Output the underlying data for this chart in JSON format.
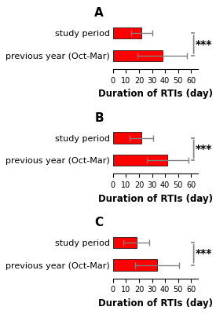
{
  "panels": [
    {
      "label": "A",
      "categories": [
        "study period",
        "previous year (Oct-Mar)"
      ],
      "values": [
        22,
        38
      ],
      "errors": [
        8,
        19
      ],
      "xlim": [
        0,
        65
      ],
      "xticks": [
        0,
        10,
        20,
        30,
        40,
        50,
        60
      ],
      "xlabel": "Duration of RTIs (day)",
      "sig_text": "***"
    },
    {
      "label": "B",
      "categories": [
        "study period",
        "previous year (Oct-Mar)"
      ],
      "values": [
        22,
        42
      ],
      "errors": [
        9,
        16
      ],
      "xlim": [
        0,
        65
      ],
      "xticks": [
        0,
        10,
        20,
        30,
        40,
        50,
        60
      ],
      "xlabel": "Duration of RTIs (day)",
      "sig_text": "***"
    },
    {
      "label": "C",
      "categories": [
        "study period",
        "previous year (Oct-Mar)"
      ],
      "values": [
        18,
        34
      ],
      "errors": [
        10,
        17
      ],
      "xlim": [
        0,
        65
      ],
      "xticks": [
        0,
        10,
        20,
        30,
        40,
        50,
        60
      ],
      "xlabel": "Duration of RTIs (day)",
      "sig_text": "***"
    }
  ],
  "bar_color": "#FF0000",
  "bar_edge_color": "#000000",
  "error_color": "#808080",
  "background_color": "#FFFFFF",
  "sig_fontsize": 10,
  "label_fontsize": 8,
  "tick_fontsize": 7,
  "xlabel_fontsize": 8.5,
  "panel_label_fontsize": 11
}
